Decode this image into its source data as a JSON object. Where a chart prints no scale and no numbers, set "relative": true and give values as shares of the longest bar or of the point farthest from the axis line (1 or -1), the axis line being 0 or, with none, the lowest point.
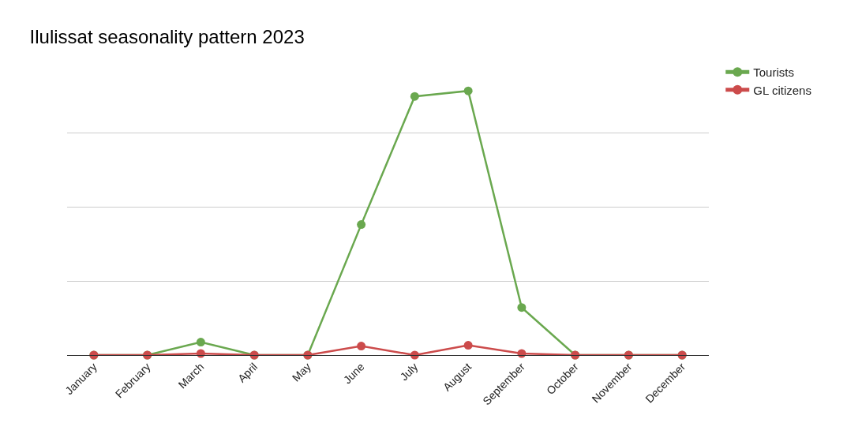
{
  "chart_data": {
    "type": "line",
    "title": "Ilulissat seasonality pattern 2023",
    "relative": true,
    "categories": [
      "January",
      "February",
      "March",
      "April",
      "May",
      "June",
      "July",
      "August",
      "September",
      "October",
      "November",
      "December"
    ],
    "series": [
      {
        "name": "Tourists",
        "color": "#6aa84f",
        "values": [
          0,
          0,
          0.049,
          0,
          0,
          0.494,
          0.979,
          1,
          0.18,
          0,
          0,
          0
        ]
      },
      {
        "name": "GL citizens",
        "color": "#cc4b4b",
        "values": [
          0,
          0,
          0.006,
          0,
          0,
          0.034,
          0,
          0.037,
          0.006,
          0,
          0,
          0
        ]
      }
    ],
    "grid": "y",
    "legend": "top right",
    "marker": "circle",
    "line_style": "solid"
  }
}
